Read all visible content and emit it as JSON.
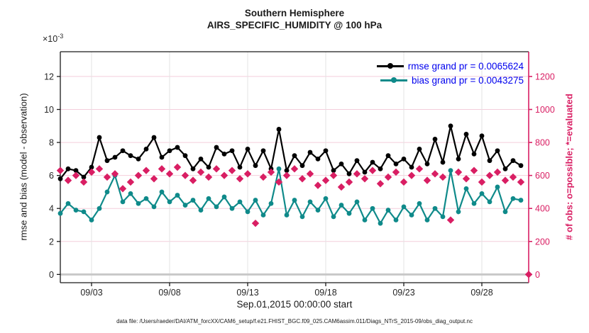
{
  "title": {
    "line1": "Southern Hemisphere",
    "line2": "AIRS_SPECIFIC_HUMIDITY @ 100 hPa"
  },
  "axes": {
    "offset_base": "×10",
    "offset_exp": "-3",
    "ylabel_left": "rmse and bias (model - observation)",
    "ylabel_right": "# of obs: o=possible; *=evaluated",
    "xlabel": "Sep.01,2015 00:00:00 start"
  },
  "legend": [
    {
      "label": "rmse grand pr = 0.0065624",
      "color": "#000000"
    },
    {
      "label": "bias grand pr = 0.0043275",
      "color": "#0f8a8a"
    }
  ],
  "caption": "data file: /Users/raeder/DAI/ATM_forcXX/CAM6_setup/f.e21.FHIST_BGC.f09_025.CAM6assim.011/Diags_NTrS_2015-09/obs_diag_output.nc",
  "colors": {
    "rmse": "#000000",
    "bias": "#0f8a8a",
    "obs": "#d91e63",
    "legend_text": "#0000ee",
    "grid_h": "#f4cedb",
    "grid_v": "#e3e3e3",
    "zero_line": "#c8c8c8",
    "spine": "#1a1a1a",
    "tick_label": "#262626"
  },
  "chart_data": {
    "type": "line",
    "title": "Southern Hemisphere — AIRS_SPECIFIC_HUMIDITY @ 100 hPa",
    "x_unit": "days since Sep.01,2015 00:00:00",
    "x_range": [
      0,
      30
    ],
    "x_ticks": {
      "positions": [
        2,
        7,
        12,
        17,
        22,
        27
      ],
      "labels": [
        "09/03",
        "09/08",
        "09/13",
        "09/18",
        "09/23",
        "09/28"
      ]
    },
    "left_axis": {
      "label": "rmse and bias (model - observation)",
      "scale_exponent": -3,
      "ylim": [
        -0.5,
        13.5
      ],
      "ticks": [
        0,
        2,
        4,
        6,
        8,
        10,
        12
      ]
    },
    "right_axis": {
      "label": "# of obs: o=possible; *=evaluated",
      "ylim": [
        -50,
        1350
      ],
      "ticks": [
        0,
        200,
        400,
        600,
        800,
        1000,
        1200
      ]
    },
    "series": [
      {
        "name": "rmse",
        "axis": "left",
        "marker": "circle",
        "line": true,
        "color": "#000000",
        "grand_pr": 0.0065624,
        "x_start": 0,
        "x_step": 0.5,
        "values": [
          5.8,
          6.4,
          6.3,
          5.9,
          6.5,
          8.3,
          6.9,
          7.1,
          7.5,
          7.2,
          7.0,
          7.6,
          8.3,
          7.1,
          7.5,
          7.7,
          7.2,
          6.4,
          7.0,
          6.5,
          7.7,
          7.3,
          7.5,
          6.5,
          7.6,
          6.6,
          7.5,
          6.4,
          8.8,
          6.3,
          7.2,
          6.6,
          7.4,
          7.0,
          7.5,
          6.3,
          6.7,
          6.1,
          6.9,
          6.2,
          6.8,
          6.4,
          7.2,
          6.7,
          7.0,
          6.5,
          7.6,
          6.7,
          8.2,
          6.8,
          9.0,
          7.0,
          8.5,
          7.3,
          8.4,
          6.9,
          7.5,
          6.4,
          6.9,
          6.6
        ]
      },
      {
        "name": "bias",
        "axis": "left",
        "marker": "circle",
        "line": true,
        "color": "#0f8a8a",
        "grand_pr": 0.0043275,
        "x_start": 0,
        "x_step": 0.5,
        "values": [
          3.7,
          4.3,
          3.9,
          3.8,
          3.3,
          4.0,
          5.0,
          6.0,
          4.4,
          4.9,
          4.3,
          4.6,
          4.1,
          5.0,
          4.4,
          4.8,
          4.2,
          4.5,
          3.9,
          4.6,
          4.1,
          4.7,
          4.0,
          4.4,
          3.8,
          4.5,
          3.6,
          4.3,
          6.4,
          3.6,
          4.5,
          3.5,
          4.4,
          3.9,
          4.6,
          3.5,
          4.2,
          3.7,
          4.4,
          3.3,
          4.0,
          3.1,
          3.9,
          3.3,
          4.1,
          3.6,
          4.3,
          3.3,
          4.0,
          3.5,
          6.3,
          3.8,
          5.2,
          4.3,
          4.9,
          4.4,
          5.3,
          3.8,
          4.6,
          4.5
        ]
      },
      {
        "name": "num_obs_evaluated",
        "axis": "right",
        "marker": "diamond",
        "line": false,
        "color": "#d91e63",
        "x_start": 0,
        "x_step": 0.5,
        "values": [
          630,
          570,
          600,
          560,
          620,
          640,
          590,
          610,
          520,
          560,
          600,
          630,
          580,
          640,
          610,
          650,
          600,
          570,
          620,
          590,
          640,
          600,
          630,
          580,
          610,
          310,
          590,
          620,
          560,
          600,
          640,
          580,
          610,
          540,
          570,
          600,
          530,
          560,
          610,
          580,
          630,
          550,
          590,
          620,
          560,
          600,
          640,
          570,
          610,
          590,
          330,
          620,
          580,
          630,
          560,
          600,
          620,
          570,
          590,
          560,
          0
        ]
      }
    ]
  }
}
